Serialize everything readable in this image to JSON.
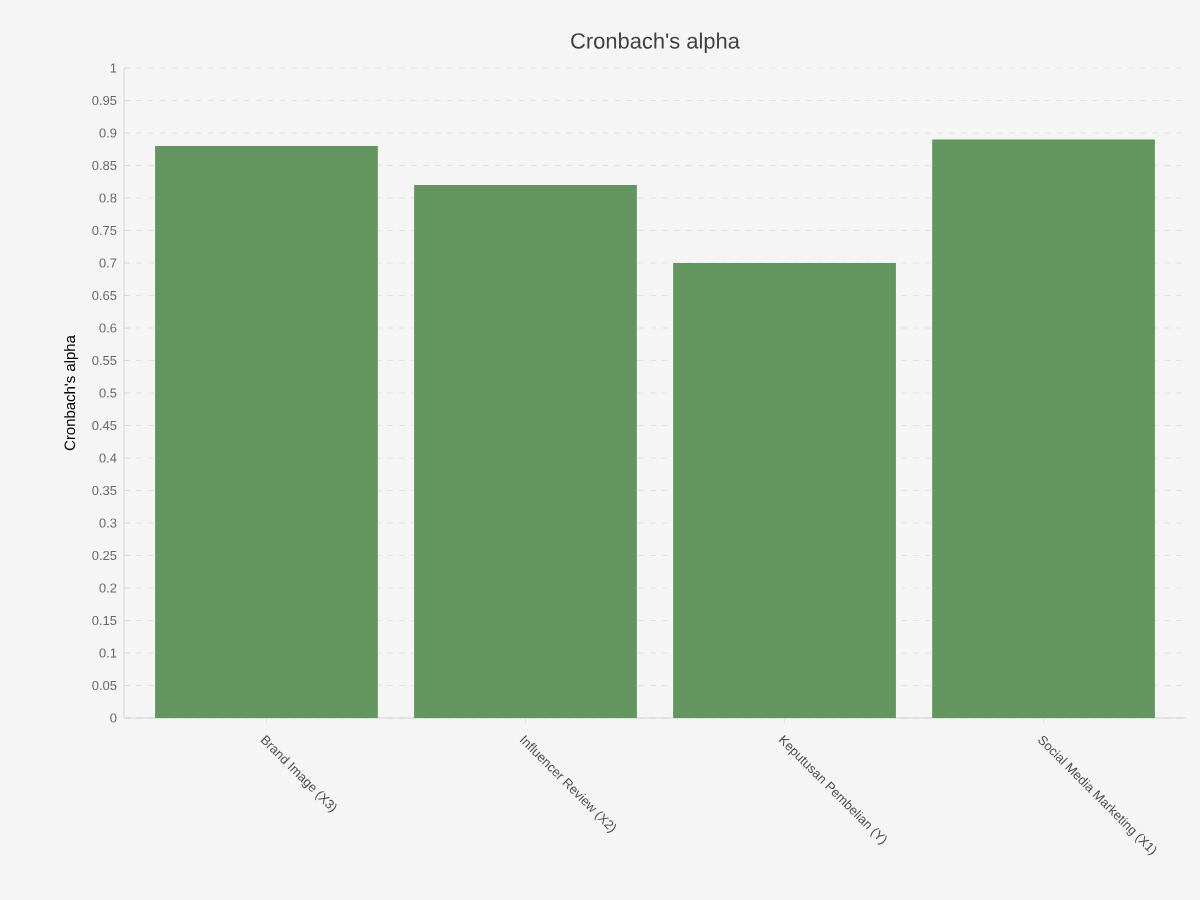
{
  "chart_data": {
    "type": "bar",
    "title": "Cronbach's alpha",
    "ylabel": "Cronbach's alpha",
    "categories": [
      "Brand Image (X3)",
      "Influencer Review (X2)",
      "Keputusan Pembelian (Y)",
      "Social Media Marketing (X1)"
    ],
    "values": [
      0.88,
      0.82,
      0.7,
      0.89
    ],
    "color": "#63965f",
    "ylim": [
      0,
      1
    ],
    "yticks": [
      0,
      0.05,
      0.1,
      0.15,
      0.2,
      0.25,
      0.3,
      0.35,
      0.4,
      0.45,
      0.5,
      0.55,
      0.6,
      0.65,
      0.7,
      0.75,
      0.8,
      0.85,
      0.9,
      0.95,
      1
    ],
    "grid": "y"
  }
}
